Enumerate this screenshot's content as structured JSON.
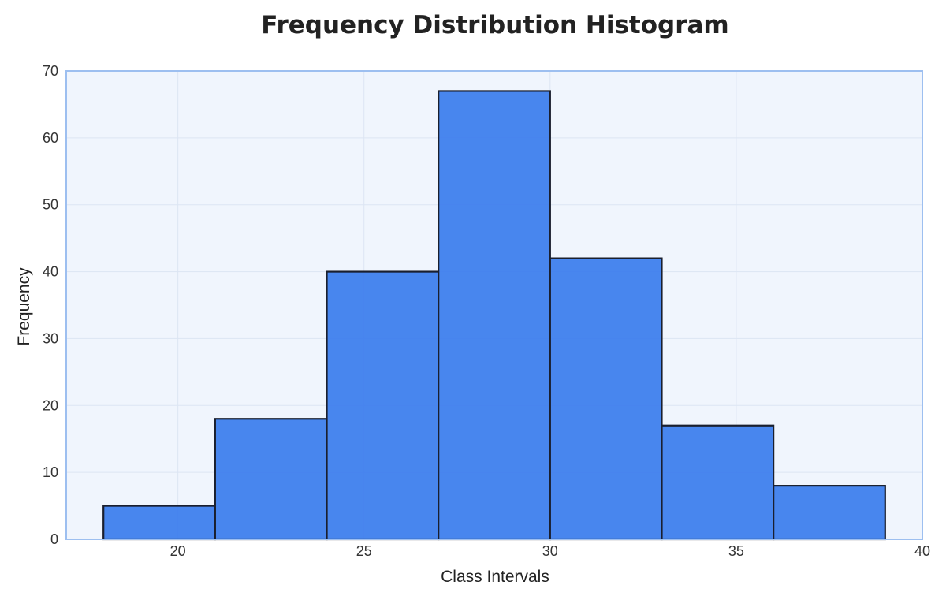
{
  "chart_data": {
    "type": "bar",
    "title": "Frequency Distribution Histogram",
    "xlabel": "Class Intervals",
    "ylabel": "Frequency",
    "xlim": [
      17,
      40
    ],
    "ylim": [
      0,
      70
    ],
    "xticks": [
      20,
      25,
      30,
      35,
      40
    ],
    "yticks": [
      0,
      10,
      20,
      30,
      40,
      50,
      60,
      70
    ],
    "grid": true,
    "legend": "none",
    "bins": [
      {
        "start": 18,
        "end": 21,
        "value": 5
      },
      {
        "start": 21,
        "end": 24,
        "value": 18
      },
      {
        "start": 24,
        "end": 27,
        "value": 40
      },
      {
        "start": 27,
        "end": 30,
        "value": 67
      },
      {
        "start": 30,
        "end": 33,
        "value": 42
      },
      {
        "start": 33,
        "end": 36,
        "value": 17
      },
      {
        "start": 36,
        "end": 39,
        "value": 8
      }
    ],
    "colors": {
      "bar_fill": "#3b7ded",
      "bar_edge": "#1a1f2e",
      "plot_background": "#f0f5fd",
      "plot_border": "#9dbff0",
      "grid": "#dce5f3"
    }
  }
}
